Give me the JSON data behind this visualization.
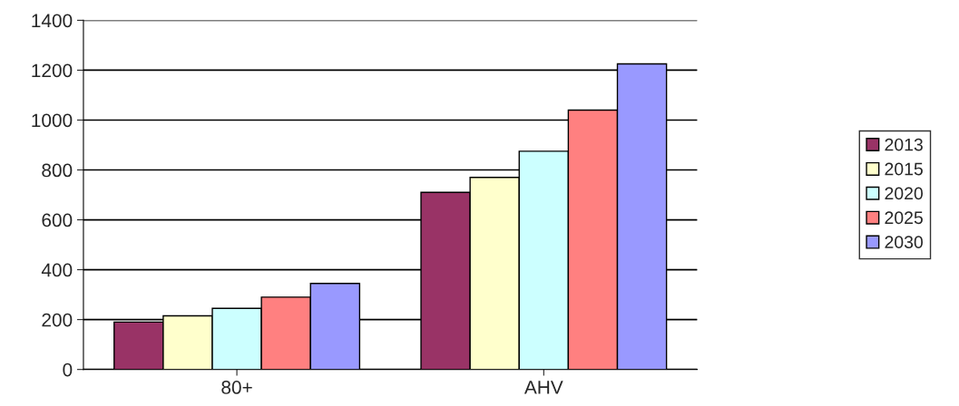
{
  "chart_data": {
    "type": "bar",
    "categories": [
      "80+",
      "AHV"
    ],
    "series": [
      {
        "name": "2013",
        "color": "#993366",
        "values": [
          190,
          710
        ]
      },
      {
        "name": "2015",
        "color": "#ffffcc",
        "values": [
          215,
          770
        ]
      },
      {
        "name": "2020",
        "color": "#ccffff",
        "values": [
          245,
          875
        ]
      },
      {
        "name": "2025",
        "color": "#ff8080",
        "values": [
          290,
          1040
        ]
      },
      {
        "name": "2030",
        "color": "#9999ff",
        "values": [
          345,
          1225
        ]
      }
    ],
    "ylim": [
      0,
      1400
    ],
    "yticks": [
      0,
      200,
      400,
      600,
      800,
      1000,
      1200,
      1400
    ],
    "grid": "y",
    "legend": "right"
  }
}
